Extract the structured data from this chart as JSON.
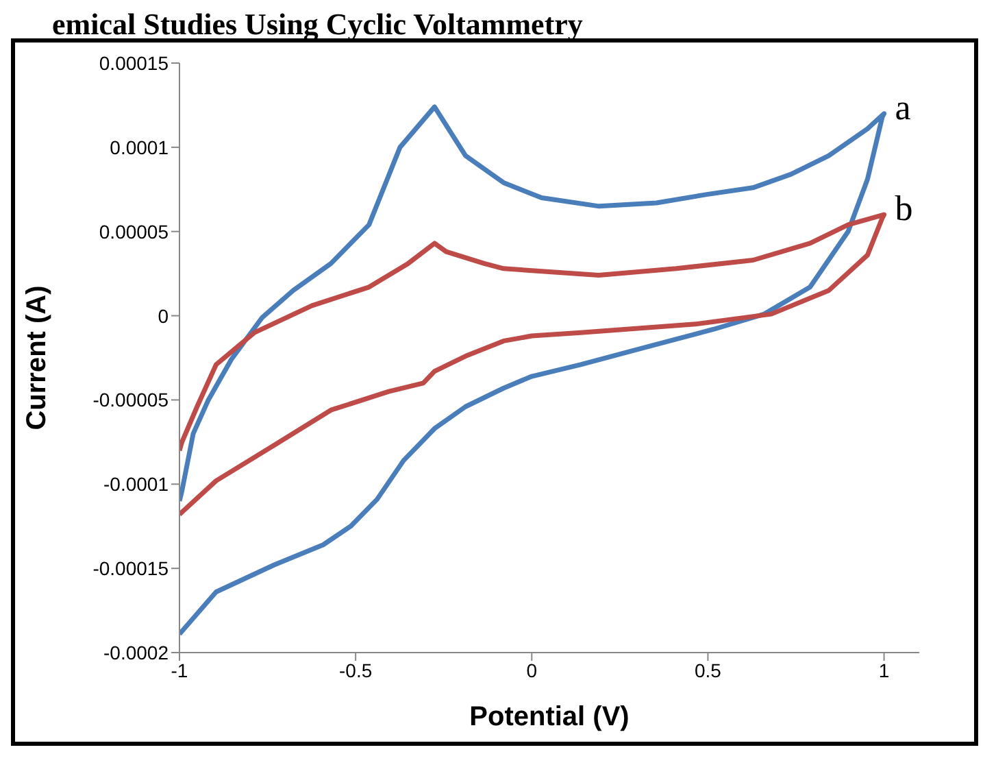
{
  "chart_data": {
    "type": "line",
    "title": "emical Studies Using Cyclic Voltammetry",
    "xlabel": "Potential (V)",
    "ylabel": "Current (A)",
    "xlim": [
      -1,
      1.1
    ],
    "xticks": [
      -1,
      -0.5,
      0,
      0.5,
      1
    ],
    "ylim": [
      -0.0002,
      0.00015
    ],
    "yticks": [
      -0.0002,
      -0.00015,
      -0.0001,
      {
        "value": -5e-05,
        "label": "-0.00005"
      },
      0,
      {
        "value": 5e-05,
        "label": "0.00005"
      },
      0.0001,
      0.00015
    ],
    "grid": false,
    "legend": false,
    "series": [
      {
        "name": "a",
        "color": "#4a7ebb",
        "x": [
          -1,
          -0.896,
          -0.732,
          -0.592,
          -0.514,
          -0.439,
          -0.364,
          -0.276,
          -0.188,
          -0.08,
          0,
          0.139,
          0.354,
          0.517,
          0.66,
          0.79,
          0.898,
          0.953,
          0.995,
          1,
          0.953,
          0.843,
          0.736,
          0.628,
          0.497,
          0.354,
          0.191,
          0.028,
          -0.08,
          -0.188,
          -0.276,
          -0.374,
          -0.462,
          -0.57,
          -0.677,
          -0.765,
          -0.853,
          -0.918,
          -0.961,
          -0.993,
          -1
        ],
        "values": [
          -0.000189,
          -0.000164,
          -0.000148,
          -0.000136,
          -0.000125,
          -0.000109,
          -8.6e-05,
          -6.7e-05,
          -5.4e-05,
          -4.3e-05,
          -3.6e-05,
          -2.9e-05,
          -1.7e-05,
          -8e-06,
          1e-06,
          1.7e-05,
          5e-05,
          8.1e-05,
          0.000118,
          0.00012,
          0.000111,
          9.5e-05,
          8.4e-05,
          7.6e-05,
          7.2e-05,
          6.7e-05,
          6.5e-05,
          7e-05,
          7.9e-05,
          9.5e-05,
          0.000124,
          0.0001,
          5.4e-05,
          3.1e-05,
          1.5e-05,
          -1e-06,
          -2.6e-05,
          -5e-05,
          -7e-05,
          -0.000104,
          -0.00011
        ]
      },
      {
        "name": "b",
        "color": "#be4b48",
        "x": [
          -1,
          -0.896,
          -0.732,
          -0.57,
          -0.406,
          -0.308,
          -0.276,
          -0.188,
          -0.08,
          0,
          0.139,
          0.465,
          0.68,
          0.843,
          0.953,
          0.995,
          1,
          0.898,
          0.79,
          0.628,
          0.41,
          0.19,
          -0.08,
          -0.135,
          -0.243,
          -0.276,
          -0.351,
          -0.462,
          -0.624,
          -0.787,
          -0.896,
          -0.95,
          -0.993,
          -1
        ],
        "values": [
          -0.000118,
          -9.8e-05,
          -7.7e-05,
          -5.6e-05,
          -4.5e-05,
          -4e-05,
          -3.3e-05,
          -2.4e-05,
          -1.5e-05,
          -1.2e-05,
          -1e-05,
          -5e-06,
          1e-06,
          1.5e-05,
          3.6e-05,
          5.8e-05,
          6e-05,
          5.4e-05,
          4.3e-05,
          3.3e-05,
          2.8e-05,
          2.4e-05,
          2.8e-05,
          3.1e-05,
          3.8e-05,
          4.3e-05,
          3.1e-05,
          1.7e-05,
          6e-06,
          -1e-05,
          -2.9e-05,
          -5.4e-05,
          -7.5e-05,
          -8e-05
        ]
      }
    ]
  }
}
